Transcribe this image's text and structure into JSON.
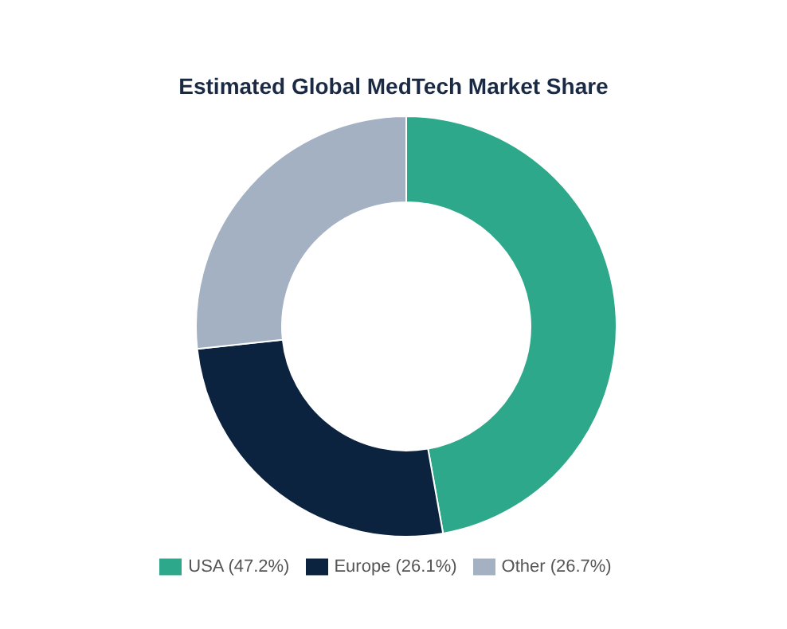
{
  "chart_data": {
    "type": "donut",
    "title": "Estimated Global MedTech Market Share",
    "categories": [
      "USA (47.2%)",
      "Europe (26.1%)",
      "Other (26.7%)"
    ],
    "values": [
      47.2,
      26.1,
      26.7
    ],
    "colors": [
      "#2ea88a",
      "#0c2340",
      "#a3b1c2"
    ],
    "legend": "bottom"
  }
}
